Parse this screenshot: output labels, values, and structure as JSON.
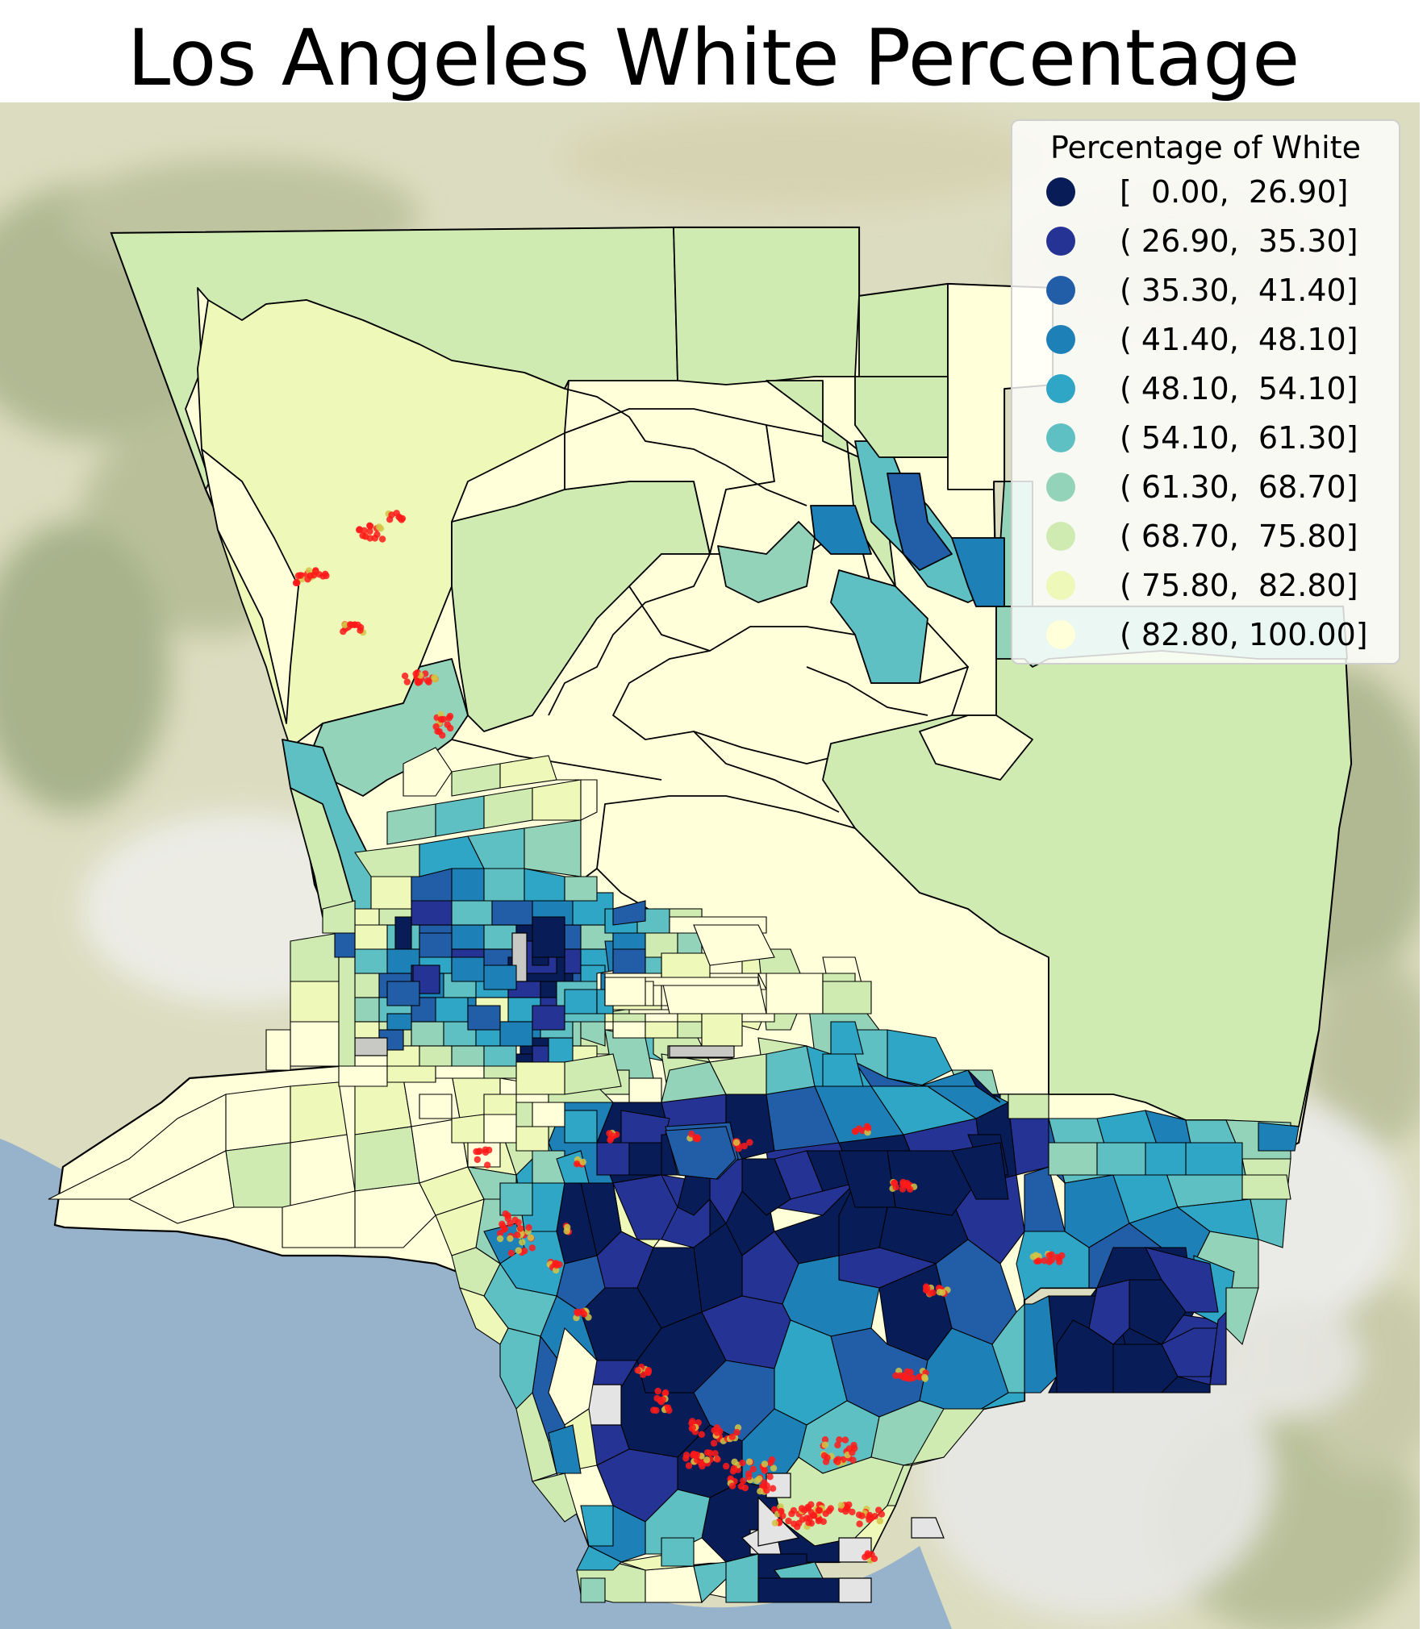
{
  "title": "Los Angeles White Percentage",
  "legend": {
    "title": "Percentage of White",
    "items": [
      {
        "label": "[  0.00,  26.90]",
        "color": "#081d58"
      },
      {
        "label": "( 26.90,  35.30]",
        "color": "#253494"
      },
      {
        "label": "( 35.30,  41.40]",
        "color": "#225ea8"
      },
      {
        "label": "( 41.40,  48.10]",
        "color": "#1d81b8"
      },
      {
        "label": "( 48.10,  54.10]",
        "color": "#2fa6c6"
      },
      {
        "label": "( 54.10,  61.30]",
        "color": "#5ec0c2"
      },
      {
        "label": "( 61.30,  68.70]",
        "color": "#93d3b9"
      },
      {
        "label": "( 68.70,  75.80]",
        "color": "#cfebb1"
      },
      {
        "label": "( 75.80,  82.80]",
        "color": "#eef8b8"
      },
      {
        "label": "( 82.80, 100.00]",
        "color": "#ffffd9"
      }
    ]
  },
  "map": {
    "ocean_color": "#97b2cb",
    "terrain_color": "#d8d8b8",
    "boundary_color": "#000000",
    "point_color": "#ff1a1a",
    "point_fill_color": "#d4c444"
  }
}
